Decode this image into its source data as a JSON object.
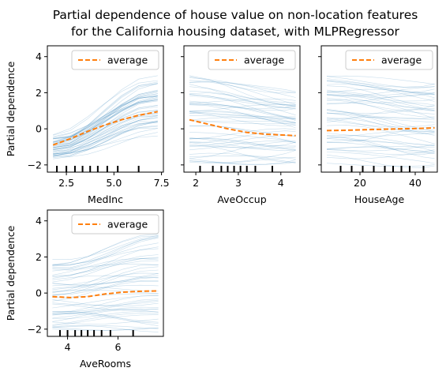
{
  "figure": {
    "title_lines": [
      "Partial dependence of house value on non-location features",
      "for the California housing dataset, with MLPRegressor"
    ]
  },
  "colors": {
    "ice": "#1f77b4",
    "average": "#ff7f0e",
    "axes": "#000000"
  },
  "chart_data": [
    {
      "type": "line",
      "feature": "MedInc",
      "xlabel": "MedInc",
      "ylabel": "Partial dependence",
      "xlim": [
        1.5,
        7.6
      ],
      "ylim": [
        -2.4,
        4.6
      ],
      "xticks": [
        2.5,
        5.0,
        7.5
      ],
      "xtick_labels": [
        "2.5",
        "5.0",
        "7.5"
      ],
      "yticks": [
        -2,
        0,
        2,
        4
      ],
      "ytick_labels": [
        "−2",
        "0",
        "2",
        "4"
      ],
      "show_yticklabels": true,
      "legend": {
        "label": "average",
        "placement": "top-right"
      },
      "deciles": [
        2.0,
        2.5,
        2.95,
        3.35,
        3.75,
        4.15,
        4.65,
        5.2,
        6.3
      ],
      "x": [
        1.8,
        2.7,
        3.6,
        4.5,
        5.4,
        6.3,
        7.3
      ],
      "average": [
        -0.9,
        -0.55,
        -0.15,
        0.2,
        0.5,
        0.75,
        0.95
      ],
      "ice_range": {
        "start": [
          -1.7,
          -0.2
        ],
        "end": [
          -0.3,
          3.0
        ]
      }
    },
    {
      "type": "line",
      "feature": "AveOccup",
      "xlabel": "AveOccup",
      "ylabel": "",
      "xlim": [
        1.72,
        4.45
      ],
      "ylim": [
        -2.4,
        4.6
      ],
      "xticks": [
        2,
        3,
        4
      ],
      "xtick_labels": [
        "2",
        "3",
        "4"
      ],
      "yticks": [
        -2,
        0,
        2,
        4
      ],
      "ytick_labels": [
        "−2",
        "0",
        "2",
        "4"
      ],
      "show_yticklabels": false,
      "legend": {
        "label": "average",
        "placement": "top-right"
      },
      "deciles": [
        2.1,
        2.4,
        2.6,
        2.75,
        2.9,
        3.05,
        3.2,
        3.4,
        3.8
      ],
      "x": [
        1.85,
        2.3,
        2.75,
        3.2,
        3.65,
        4.1,
        4.35
      ],
      "average": [
        0.5,
        0.25,
        0.0,
        -0.2,
        -0.3,
        -0.35,
        -0.38
      ],
      "ice_range": {
        "start": [
          -2.0,
          3.0
        ],
        "end": [
          -1.8,
          1.9
        ]
      }
    },
    {
      "type": "line",
      "feature": "HouseAge",
      "xlabel": "HouseAge",
      "ylabel": "",
      "xlim": [
        6,
        48
      ],
      "ylim": [
        -2.4,
        4.6
      ],
      "xticks": [
        20,
        40
      ],
      "xtick_labels": [
        "20",
        "40"
      ],
      "yticks": [
        -2,
        0,
        2,
        4
      ],
      "ytick_labels": [
        "−2",
        "0",
        "2",
        "4"
      ],
      "show_yticklabels": false,
      "legend": {
        "label": "average",
        "placement": "top-right"
      },
      "deciles": [
        13,
        17,
        21,
        25,
        29,
        32,
        35,
        38,
        43
      ],
      "x": [
        8,
        15,
        22,
        29,
        36,
        43,
        47
      ],
      "average": [
        -0.1,
        -0.08,
        -0.05,
        -0.02,
        0.0,
        0.03,
        0.05
      ],
      "ice_range": {
        "start": [
          -2.0,
          3.0
        ],
        "end": [
          -2.0,
          2.5
        ]
      }
    },
    {
      "type": "line",
      "feature": "AveRooms",
      "xlabel": "AveRooms",
      "ylabel": "Partial dependence",
      "xlim": [
        3.2,
        7.8
      ],
      "ylim": [
        -2.4,
        4.6
      ],
      "xticks": [
        4,
        6
      ],
      "xtick_labels": [
        "4",
        "6"
      ],
      "yticks": [
        -2,
        0,
        2,
        4
      ],
      "ytick_labels": [
        "−2",
        "0",
        "2",
        "4"
      ],
      "show_yticklabels": true,
      "legend": {
        "label": "average",
        "placement": "top-right"
      },
      "deciles": [
        3.7,
        4.0,
        4.3,
        4.55,
        4.8,
        5.05,
        5.35,
        5.7,
        6.6
      ],
      "x": [
        3.4,
        4.1,
        4.8,
        5.5,
        6.2,
        6.9,
        7.6
      ],
      "average": [
        -0.2,
        -0.25,
        -0.2,
        -0.05,
        0.05,
        0.1,
        0.12
      ],
      "ice_range": {
        "start": [
          -2.0,
          1.9
        ],
        "end": [
          -2.0,
          3.1
        ]
      }
    }
  ]
}
